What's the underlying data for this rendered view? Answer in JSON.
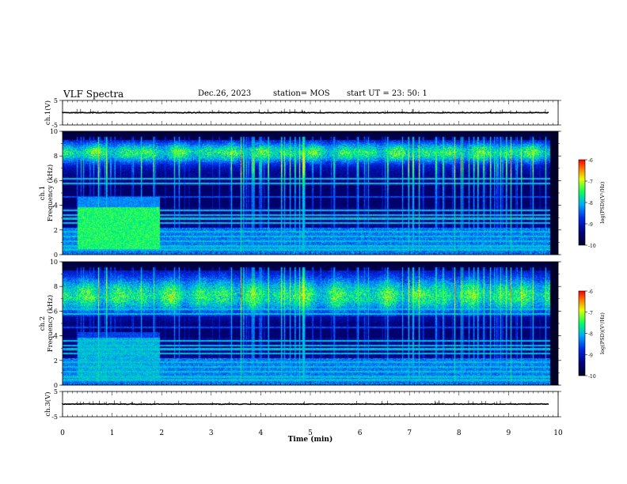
{
  "header": {
    "title": "VLF Spectra",
    "date": "Dec.26, 2023",
    "station": "station= MOS",
    "start": "start  UT =   23: 50: 1"
  },
  "chart_data": [
    {
      "type": "line",
      "panel": "waveform-top",
      "ylabel": "ch.1(V)",
      "ylim": [
        -5,
        5
      ],
      "y_ticks": [
        "5",
        "-5"
      ],
      "xlim": [
        0,
        10
      ],
      "baseline": 0
    },
    {
      "type": "heatmap",
      "panel": "spectrogram-ch1",
      "ylabel_line1": "ch.1",
      "ylabel_line2": "Frequency (kHz)",
      "ylim": [
        0,
        10
      ],
      "y_ticks": [
        "0",
        "2",
        "4",
        "6",
        "8",
        "10"
      ],
      "xlim": [
        0,
        10
      ],
      "colorbar": {
        "label": "log(PSD)(V²/Hz)",
        "range": [
          -10,
          -6
        ],
        "ticks": [
          "-6",
          "-7",
          "-8",
          "-9",
          "-10"
        ]
      }
    },
    {
      "type": "heatmap",
      "panel": "spectrogram-ch2",
      "ylabel_line1": "ch.2",
      "ylabel_line2": "Frequency (kHz)",
      "ylim": [
        0,
        10
      ],
      "y_ticks": [
        "0",
        "2",
        "4",
        "6",
        "8",
        "10"
      ],
      "xlim": [
        0,
        10
      ],
      "colorbar": {
        "label": "log(PSD)(V²/Hz)",
        "range": [
          -10,
          -6
        ],
        "ticks": [
          "-6",
          "-7",
          "-8",
          "-9",
          "-10"
        ]
      }
    },
    {
      "type": "line",
      "panel": "waveform-bottom",
      "ylabel": "ch.3(V)",
      "ylim": [
        -5,
        5
      ],
      "y_ticks": [
        "5",
        "-5"
      ],
      "xlim": [
        0,
        10
      ],
      "baseline": 0,
      "xlabel": "Time (min)",
      "x_ticks": [
        "0",
        "1",
        "2",
        "3",
        "4",
        "5",
        "6",
        "7",
        "8",
        "9",
        "10"
      ]
    }
  ],
  "colors": {
    "background": "#000033",
    "low": "#0000c8",
    "mid_low": "#00a0ff",
    "mid": "#00ff60",
    "mid_high": "#ffff00",
    "high": "#ff0000"
  }
}
